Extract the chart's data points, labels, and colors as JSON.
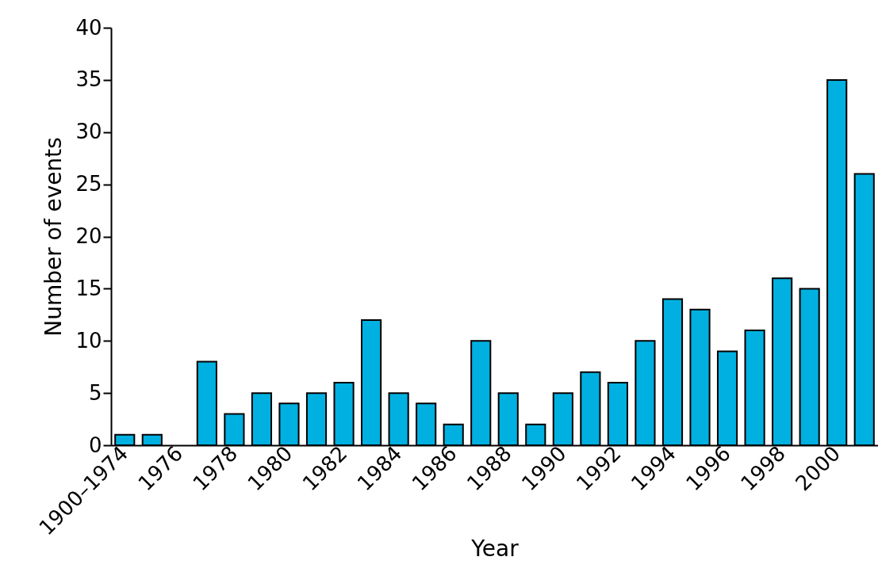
{
  "chart_data": {
    "type": "bar",
    "xlabel": "Year",
    "ylabel": "Number of events",
    "categories": [
      "1900–1974",
      null,
      "1976",
      null,
      "1978",
      null,
      "1980",
      null,
      "1982",
      null,
      "1984",
      null,
      "1986",
      null,
      "1988",
      null,
      "1990",
      null,
      "1992",
      null,
      "1994",
      null,
      "1996",
      null,
      "1998",
      null,
      "2000",
      null
    ],
    "values": [
      1,
      1,
      0,
      8,
      3,
      5,
      4,
      5,
      6,
      12,
      5,
      4,
      2,
      10,
      5,
      2,
      5,
      7,
      6,
      10,
      14,
      13,
      9,
      11,
      16,
      15,
      35,
      26
    ],
    "color": "#00b0e0",
    "ylim": [
      0,
      40
    ],
    "yticks": [
      0,
      5,
      10,
      15,
      20,
      25,
      30,
      35,
      40
    ],
    "grid": false
  }
}
